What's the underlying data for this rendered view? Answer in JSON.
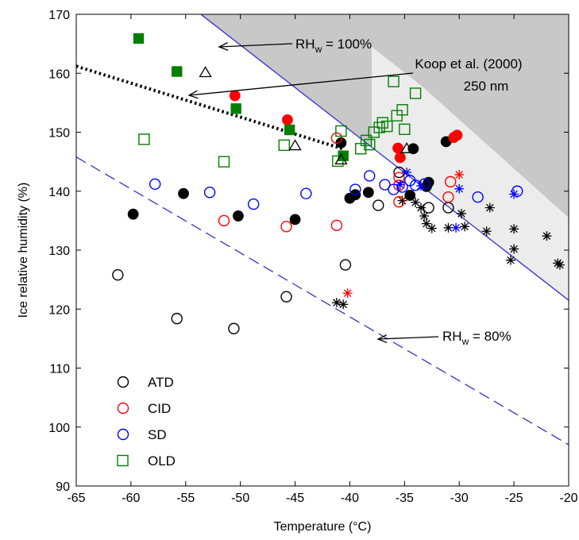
{
  "chart_data": {
    "type": "scatter",
    "xlabel": "Temperature (°C)",
    "ylabel": "Ice relative humidity (%)",
    "xlim": [
      -65,
      -20
    ],
    "ylim": [
      90,
      170
    ],
    "x_ticks": [
      -65,
      -60,
      -55,
      -50,
      -45,
      -40,
      -35,
      -30,
      -25,
      -20
    ],
    "y_ticks": [
      90,
      100,
      110,
      120,
      130,
      140,
      150,
      160,
      170
    ],
    "grid": false,
    "legend_position": "bottom-left",
    "colors": {
      "ATD": "#000000",
      "CID": "#ff0000",
      "SD": "#0000ff",
      "OLD": "#008000",
      "rhw_line": "#3333cc",
      "shade": "#c8c8c8",
      "koop_shade": "#ececec"
    },
    "series": [
      {
        "name": "ATD",
        "marker": "circle",
        "color": "#000000",
        "open": [
          [
            -61.2,
            125.8
          ],
          [
            -55.8,
            118.4
          ],
          [
            -50.6,
            116.7
          ],
          [
            -45.8,
            122.1
          ],
          [
            -40.4,
            127.5
          ],
          [
            -37.4,
            137.6
          ],
          [
            -35.5,
            143.2
          ],
          [
            -32.8,
            137.2
          ],
          [
            -31,
            137.2
          ]
        ],
        "filled": [
          [
            -59.8,
            136.1
          ],
          [
            -55.2,
            139.6
          ],
          [
            -50.2,
            135.8
          ],
          [
            -45,
            135.2
          ],
          [
            -40.8,
            148.2
          ],
          [
            -40,
            138.8
          ],
          [
            -39.5,
            139.4
          ],
          [
            -38.3,
            139.8
          ],
          [
            -34.2,
            147.2
          ],
          [
            -34.5,
            139.3
          ],
          [
            -33,
            140.8
          ],
          [
            -32.8,
            141.5
          ],
          [
            -31.2,
            148.4
          ]
        ],
        "stars": [
          [
            -35.2,
            138.4
          ],
          [
            -34,
            138.1
          ],
          [
            -33.5,
            137.2
          ],
          [
            -33.2,
            135.8
          ],
          [
            -33,
            134.5
          ],
          [
            -32.5,
            133.7
          ],
          [
            -31,
            133.8
          ],
          [
            -29.5,
            134
          ],
          [
            -29.8,
            136.2
          ],
          [
            -27.2,
            137.2
          ],
          [
            -27.5,
            133.2
          ],
          [
            -25,
            133.6
          ],
          [
            -25.3,
            128.3
          ],
          [
            -25,
            130.2
          ],
          [
            -22,
            132.4
          ],
          [
            -21,
            127.8
          ],
          [
            -20.8,
            127.5
          ],
          [
            -41.2,
            121.1
          ],
          [
            -40.6,
            120.8
          ]
        ]
      },
      {
        "name": "CID",
        "marker": "circle",
        "color": "#ff0000",
        "open": [
          [
            -51.5,
            135
          ],
          [
            -45.8,
            134
          ],
          [
            -41.2,
            134.2
          ],
          [
            -41.2,
            149
          ],
          [
            -35.5,
            141
          ],
          [
            -35.5,
            138.2
          ],
          [
            -35.5,
            142.3
          ],
          [
            -30.8,
            141.6
          ],
          [
            -31,
            139
          ]
        ],
        "filled": [
          [
            -50.5,
            156.2
          ],
          [
            -45.7,
            152.1
          ],
          [
            -35.6,
            147.3
          ],
          [
            -35.4,
            145.7
          ],
          [
            -30.5,
            149.1
          ],
          [
            -30.2,
            149.5
          ]
        ],
        "stars": [
          [
            -30,
            142.8
          ],
          [
            -40.2,
            122.7
          ]
        ]
      },
      {
        "name": "SD",
        "marker": "circle",
        "color": "#0000ff",
        "open": [
          [
            -57.8,
            141.2
          ],
          [
            -52.8,
            139.8
          ],
          [
            -48.8,
            137.8
          ],
          [
            -44,
            139.6
          ],
          [
            -39.5,
            140.3
          ],
          [
            -38.2,
            142.6
          ],
          [
            -36.8,
            141.1
          ],
          [
            -36,
            140.3
          ],
          [
            -35.2,
            140.7
          ],
          [
            -34.5,
            141.8
          ],
          [
            -34,
            141
          ],
          [
            -33.2,
            141.2
          ],
          [
            -28.3,
            139
          ],
          [
            -24.7,
            140
          ]
        ],
        "filled": [],
        "stars": [
          [
            -35.4,
            141.1
          ],
          [
            -34.8,
            143.2
          ],
          [
            -33.5,
            140.9
          ],
          [
            -30,
            140.4
          ],
          [
            -25,
            139.5
          ],
          [
            -30.3,
            133.8
          ]
        ]
      },
      {
        "name": "OLD",
        "marker": "square",
        "color": "#008000",
        "open": [
          [
            -58.8,
            148.8
          ],
          [
            -51.5,
            145
          ],
          [
            -46,
            147.8
          ],
          [
            -41.1,
            145.1
          ],
          [
            -40.8,
            150.2
          ],
          [
            -39,
            147.2
          ],
          [
            -38.2,
            147.9
          ],
          [
            -37.8,
            150
          ],
          [
            -37.3,
            150.8
          ],
          [
            -37,
            151.6
          ],
          [
            -36.6,
            151
          ],
          [
            -36,
            158.6
          ],
          [
            -35.7,
            152.8
          ],
          [
            -35.2,
            153.8
          ],
          [
            -35,
            150.5
          ],
          [
            -34,
            156.6
          ],
          [
            -38.5,
            148.6
          ]
        ],
        "filled": [
          [
            -59.3,
            165.9
          ],
          [
            -55.8,
            160.3
          ],
          [
            -50.4,
            154
          ],
          [
            -45.5,
            150.4
          ],
          [
            -40.6,
            146
          ]
        ]
      },
      {
        "name": "triangles",
        "marker": "triangle",
        "color": "#000000",
        "open": [
          [
            -53.2,
            160.1
          ],
          [
            -45,
            147.7
          ],
          [
            -40.8,
            145.3
          ],
          [
            -34.8,
            147.2
          ]
        ],
        "filled": []
      }
    ],
    "lines": [
      {
        "name": "RH_w = 100%",
        "style": "solid",
        "color": "#3333cc",
        "points": [
          [
            -55,
            172
          ],
          [
            -20,
            121.5
          ]
        ]
      },
      {
        "name": "RH_w = 80%",
        "style": "dashed",
        "color": "#3333cc",
        "points": [
          [
            -65,
            145.8
          ],
          [
            -20,
            97
          ]
        ]
      },
      {
        "name": "Koop et al. (2000) 250 nm",
        "style": "dotted",
        "color": "#000000",
        "points": [
          [
            -65,
            161.2
          ],
          [
            -40.5,
            147.1
          ]
        ]
      }
    ],
    "shaded_regions": [
      {
        "name": "above water saturation",
        "color": "#c8c8c8",
        "points": [
          [
            -55,
            172
          ],
          [
            -20,
            172
          ],
          [
            -20,
            121.5
          ]
        ]
      },
      {
        "name": "Koop region",
        "color": "#ececec",
        "points": [
          [
            -38,
            164.5
          ],
          [
            -33.4,
            157.8
          ],
          [
            -20,
            135.5
          ],
          [
            -20,
            121.5
          ],
          [
            -38,
            147.5
          ]
        ]
      }
    ],
    "annotations": [
      {
        "id": "rhw100",
        "prefix": "RH",
        "sub": "w",
        "suffix": " = 100%"
      },
      {
        "id": "koop",
        "line1": "Koop et al. (2000)",
        "line2": "250 nm"
      },
      {
        "id": "rhw80",
        "prefix": "RH",
        "sub": "w",
        "suffix": " = 80%"
      }
    ],
    "legend_entries": [
      {
        "label": "ATD",
        "color": "#000000",
        "marker": "circle"
      },
      {
        "label": "CID",
        "color": "#ff0000",
        "marker": "circle"
      },
      {
        "label": "SD",
        "color": "#0000ff",
        "marker": "circle"
      },
      {
        "label": "OLD",
        "color": "#008000",
        "marker": "square"
      }
    ]
  }
}
